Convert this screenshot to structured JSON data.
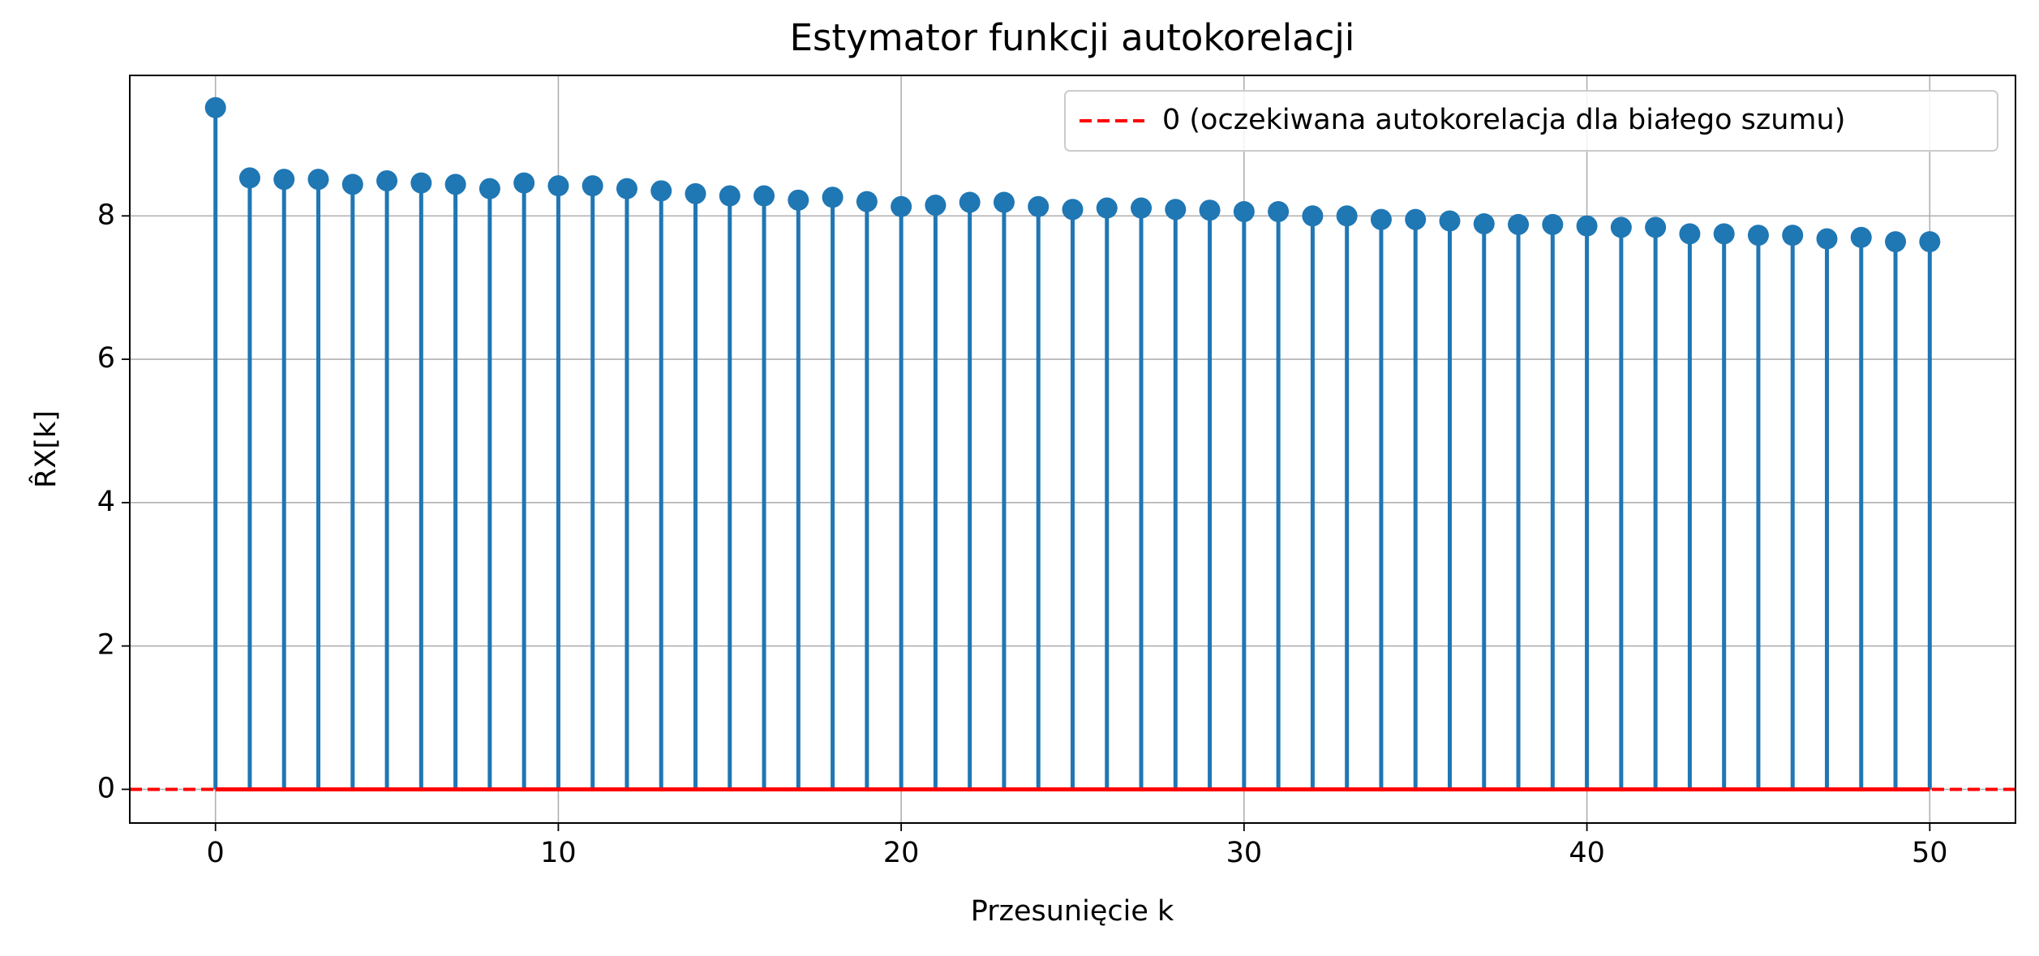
{
  "chart_data": {
    "type": "stem",
    "title": "Estymator funkcji autokorelacji",
    "xlabel": "Przesunięcie k",
    "ylabel": "R̂X[k]",
    "x": [
      0,
      1,
      2,
      3,
      4,
      5,
      6,
      7,
      8,
      9,
      10,
      11,
      12,
      13,
      14,
      15,
      16,
      17,
      18,
      19,
      20,
      21,
      22,
      23,
      24,
      25,
      26,
      27,
      28,
      29,
      30,
      31,
      32,
      33,
      34,
      35,
      36,
      37,
      38,
      39,
      40,
      41,
      42,
      43,
      44,
      45,
      46,
      47,
      48,
      49,
      50
    ],
    "values": [
      9.51,
      8.53,
      8.51,
      8.51,
      8.44,
      8.49,
      8.46,
      8.44,
      8.38,
      8.46,
      8.42,
      8.42,
      8.38,
      8.35,
      8.31,
      8.28,
      8.28,
      8.22,
      8.26,
      8.2,
      8.13,
      8.15,
      8.19,
      8.19,
      8.13,
      8.09,
      8.11,
      8.11,
      8.09,
      8.08,
      8.06,
      8.06,
      8.0,
      8.0,
      7.95,
      7.95,
      7.93,
      7.89,
      7.88,
      7.88,
      7.86,
      7.84,
      7.84,
      7.75,
      7.75,
      7.73,
      7.73,
      7.68,
      7.7,
      7.64,
      7.64
    ],
    "color": "#1f77b4",
    "reference_line": {
      "value": 0,
      "name": "0 (oczekiwana autokorelacja dla białego szumu)",
      "color": "#ff0000"
    },
    "xlim": [
      -2.5,
      52.5
    ],
    "xticks": [
      0,
      10,
      20,
      30,
      40,
      50
    ],
    "ylim": [
      -0.47,
      9.96
    ],
    "yticks": [
      0,
      2,
      4,
      6,
      8
    ],
    "grid": true,
    "legend": "upper right"
  }
}
